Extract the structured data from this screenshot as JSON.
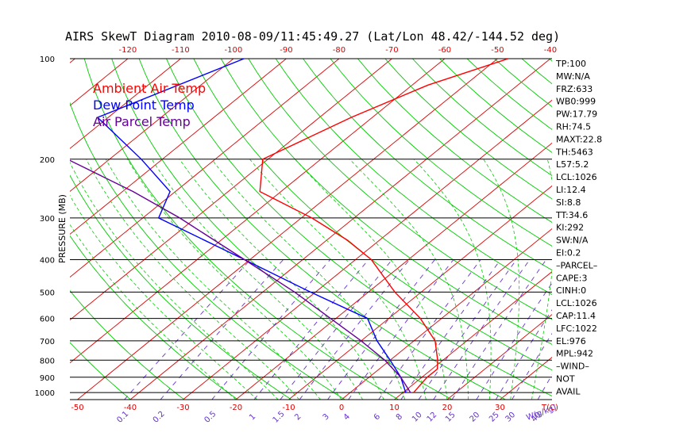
{
  "chart_data": {
    "type": "line",
    "title": "AIRS SkewT Diagram 2010-08-09/11:45:49.27 (Lat/Lon 48.42/-144.52 deg)",
    "ylabel": "PRESSURE (MB)",
    "y_scale": "log-pressure",
    "y_range": [
      1050,
      100
    ],
    "pressure_ticks": [
      100,
      200,
      300,
      400,
      500,
      600,
      700,
      800,
      900,
      1000
    ],
    "top_temp_ticks": [
      "-120",
      "-110",
      "-100",
      "-90",
      "-80",
      "-70",
      "-60",
      "-50",
      "-40"
    ],
    "bottom_temp_ticks": [
      "-50",
      "-40",
      "-30",
      "-20",
      "-10",
      "0",
      "10",
      "20",
      "30"
    ],
    "bottom_temp_unit": "T(C)",
    "mixing_ratio_ticks": [
      "0.1",
      "0.2",
      "0.5",
      "1",
      "1.5",
      "2",
      "3",
      "4",
      "6",
      "8",
      "10",
      "12",
      "15",
      "20",
      "25",
      "30",
      "40"
    ],
    "mixing_ratio_unit": "W(g/kg)",
    "colors": {
      "temperature": "#ff0000",
      "dewpoint": "#0000ff",
      "parcel": "#660099",
      "dry_adiabat": "#00cc00",
      "isotherm": "#dd0000",
      "mixing_ratio": "#6633cc",
      "isobar": "#000000"
    },
    "series": [
      {
        "name": "Ambient Air Temp",
        "color": "#ff0000",
        "points": [
          {
            "p": 100,
            "t": -48
          },
          {
            "p": 120,
            "t": -57
          },
          {
            "p": 150,
            "t": -64
          },
          {
            "p": 200,
            "t": -71
          },
          {
            "p": 250,
            "t": -64
          },
          {
            "p": 300,
            "t": -48
          },
          {
            "p": 350,
            "t": -36
          },
          {
            "p": 400,
            "t": -27
          },
          {
            "p": 500,
            "t": -15
          },
          {
            "p": 600,
            "t": -4
          },
          {
            "p": 700,
            "t": 4
          },
          {
            "p": 800,
            "t": 9
          },
          {
            "p": 850,
            "t": 11
          },
          {
            "p": 900,
            "t": 11
          },
          {
            "p": 950,
            "t": 11.5
          },
          {
            "p": 1000,
            "t": 12
          }
        ]
      },
      {
        "name": "Dew Point Temp",
        "color": "#0000ff",
        "points": [
          {
            "p": 100,
            "t": -98
          },
          {
            "p": 150,
            "t": -112
          },
          {
            "p": 200,
            "t": -94
          },
          {
            "p": 250,
            "t": -81
          },
          {
            "p": 300,
            "t": -77
          },
          {
            "p": 400,
            "t": -51
          },
          {
            "p": 500,
            "t": -31
          },
          {
            "p": 600,
            "t": -14
          },
          {
            "p": 700,
            "t": -7
          },
          {
            "p": 800,
            "t": 0
          },
          {
            "p": 900,
            "t": 6
          },
          {
            "p": 1000,
            "t": 10.5
          }
        ]
      },
      {
        "name": "Air Parcel Temp",
        "color": "#660099",
        "points": [
          {
            "p": 100,
            "t": -178
          },
          {
            "p": 150,
            "t": -136
          },
          {
            "p": 200,
            "t": -108
          },
          {
            "p": 250,
            "t": -88
          },
          {
            "p": 300,
            "t": -73
          },
          {
            "p": 400,
            "t": -51
          },
          {
            "p": 500,
            "t": -34
          },
          {
            "p": 600,
            "t": -21
          },
          {
            "p": 700,
            "t": -10
          },
          {
            "p": 800,
            "t": -1
          },
          {
            "p": 900,
            "t": 6
          },
          {
            "p": 1000,
            "t": 11.4
          }
        ]
      }
    ]
  },
  "indices": [
    "TP:100",
    "MW:N/A",
    "FRZ:633",
    "WB0:999",
    "PW:17.79",
    "RH:74.5",
    "MAXT:22.8",
    "TH:5463",
    "L57:5.2",
    "LCL:1026",
    "LI:12.4",
    "SI:8.8",
    "TT:34.6",
    "KI:292",
    "SW:N/A",
    "EI:0.2",
    "–PARCEL–",
    "CAPE:3",
    "CINH:0",
    "LCL:1026",
    "CAP:11.4",
    "LFC:1022",
    "EL:976",
    "MPL:942",
    "–WIND–",
    " NOT",
    "AVAIL"
  ]
}
